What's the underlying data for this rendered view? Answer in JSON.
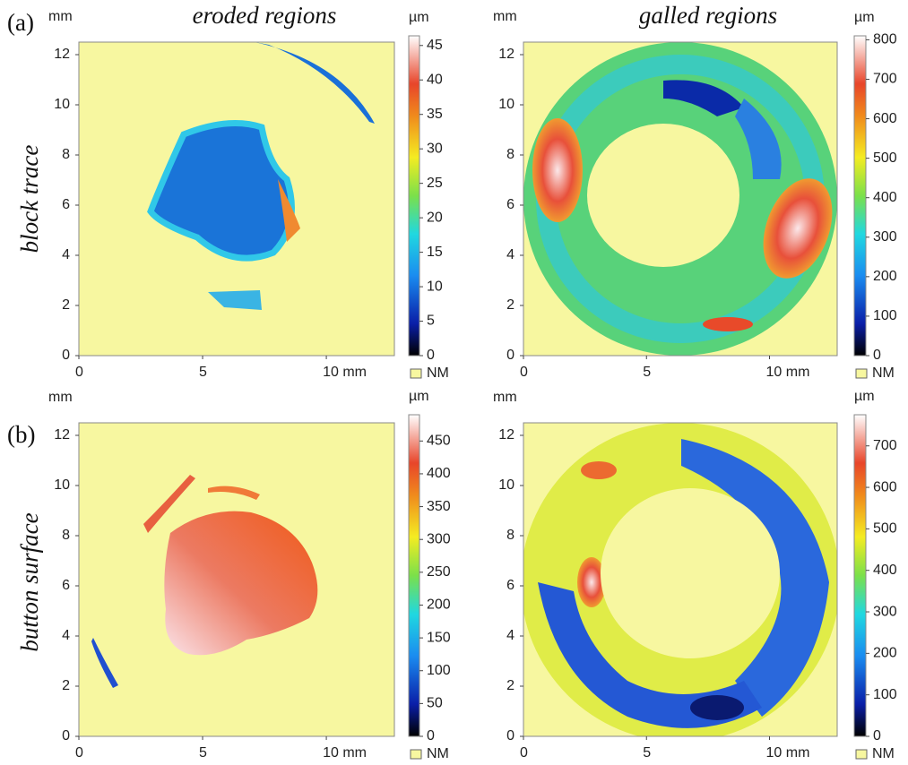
{
  "figure": {
    "labels": [
      "(a)",
      "(b)"
    ],
    "columns": [
      "eroded regions",
      "galled regions"
    ],
    "rows": [
      "block trace",
      "button surface"
    ],
    "panels": [
      {
        "y_unit": "mm",
        "colorbar_unit": "µm",
        "nodata": "NM",
        "xlim": [
          0,
          12.75
        ],
        "ylim": [
          0,
          12.5
        ],
        "xticks": [
          0,
          5,
          {
            "value": 10,
            "label": "10 mm"
          }
        ],
        "yticks": [
          0,
          2,
          4,
          6,
          8,
          10,
          12
        ],
        "clim": [
          0,
          46.4
        ],
        "cticks": [
          0,
          5,
          10,
          15,
          20,
          25,
          30,
          35,
          40,
          45
        ]
      },
      {
        "y_unit": "mm",
        "colorbar_unit": "µm",
        "nodata": "NM",
        "xlim": [
          0,
          12.75
        ],
        "ylim": [
          0,
          12.5
        ],
        "xticks": [
          0,
          5,
          {
            "value": 10,
            "label": "10 mm"
          }
        ],
        "yticks": [
          0,
          2,
          4,
          6,
          8,
          10,
          12
        ],
        "clim": [
          0,
          810
        ],
        "cticks": [
          0,
          100,
          200,
          300,
          400,
          500,
          600,
          700,
          800
        ]
      },
      {
        "y_unit": "mm",
        "colorbar_unit": "µm",
        "nodata": "NM",
        "xlim": [
          0,
          12.75
        ],
        "ylim": [
          0,
          12.5
        ],
        "xticks": [
          0,
          5,
          {
            "value": 10,
            "label": "10 mm"
          }
        ],
        "yticks": [
          0,
          2,
          4,
          6,
          8,
          10,
          12
        ],
        "clim": [
          0,
          490
        ],
        "cticks": [
          0,
          50,
          100,
          150,
          200,
          250,
          300,
          350,
          400,
          450
        ]
      },
      {
        "y_unit": "mm",
        "colorbar_unit": "µm",
        "nodata": "NM",
        "xlim": [
          0,
          12.75
        ],
        "ylim": [
          0,
          12.5
        ],
        "xticks": [
          0,
          5,
          {
            "value": 10,
            "label": "10 mm"
          }
        ],
        "yticks": [
          0,
          2,
          4,
          6,
          8,
          10,
          12
        ],
        "clim": [
          0,
          775
        ],
        "cticks": [
          0,
          100,
          200,
          300,
          400,
          500,
          600,
          700
        ]
      }
    ]
  }
}
